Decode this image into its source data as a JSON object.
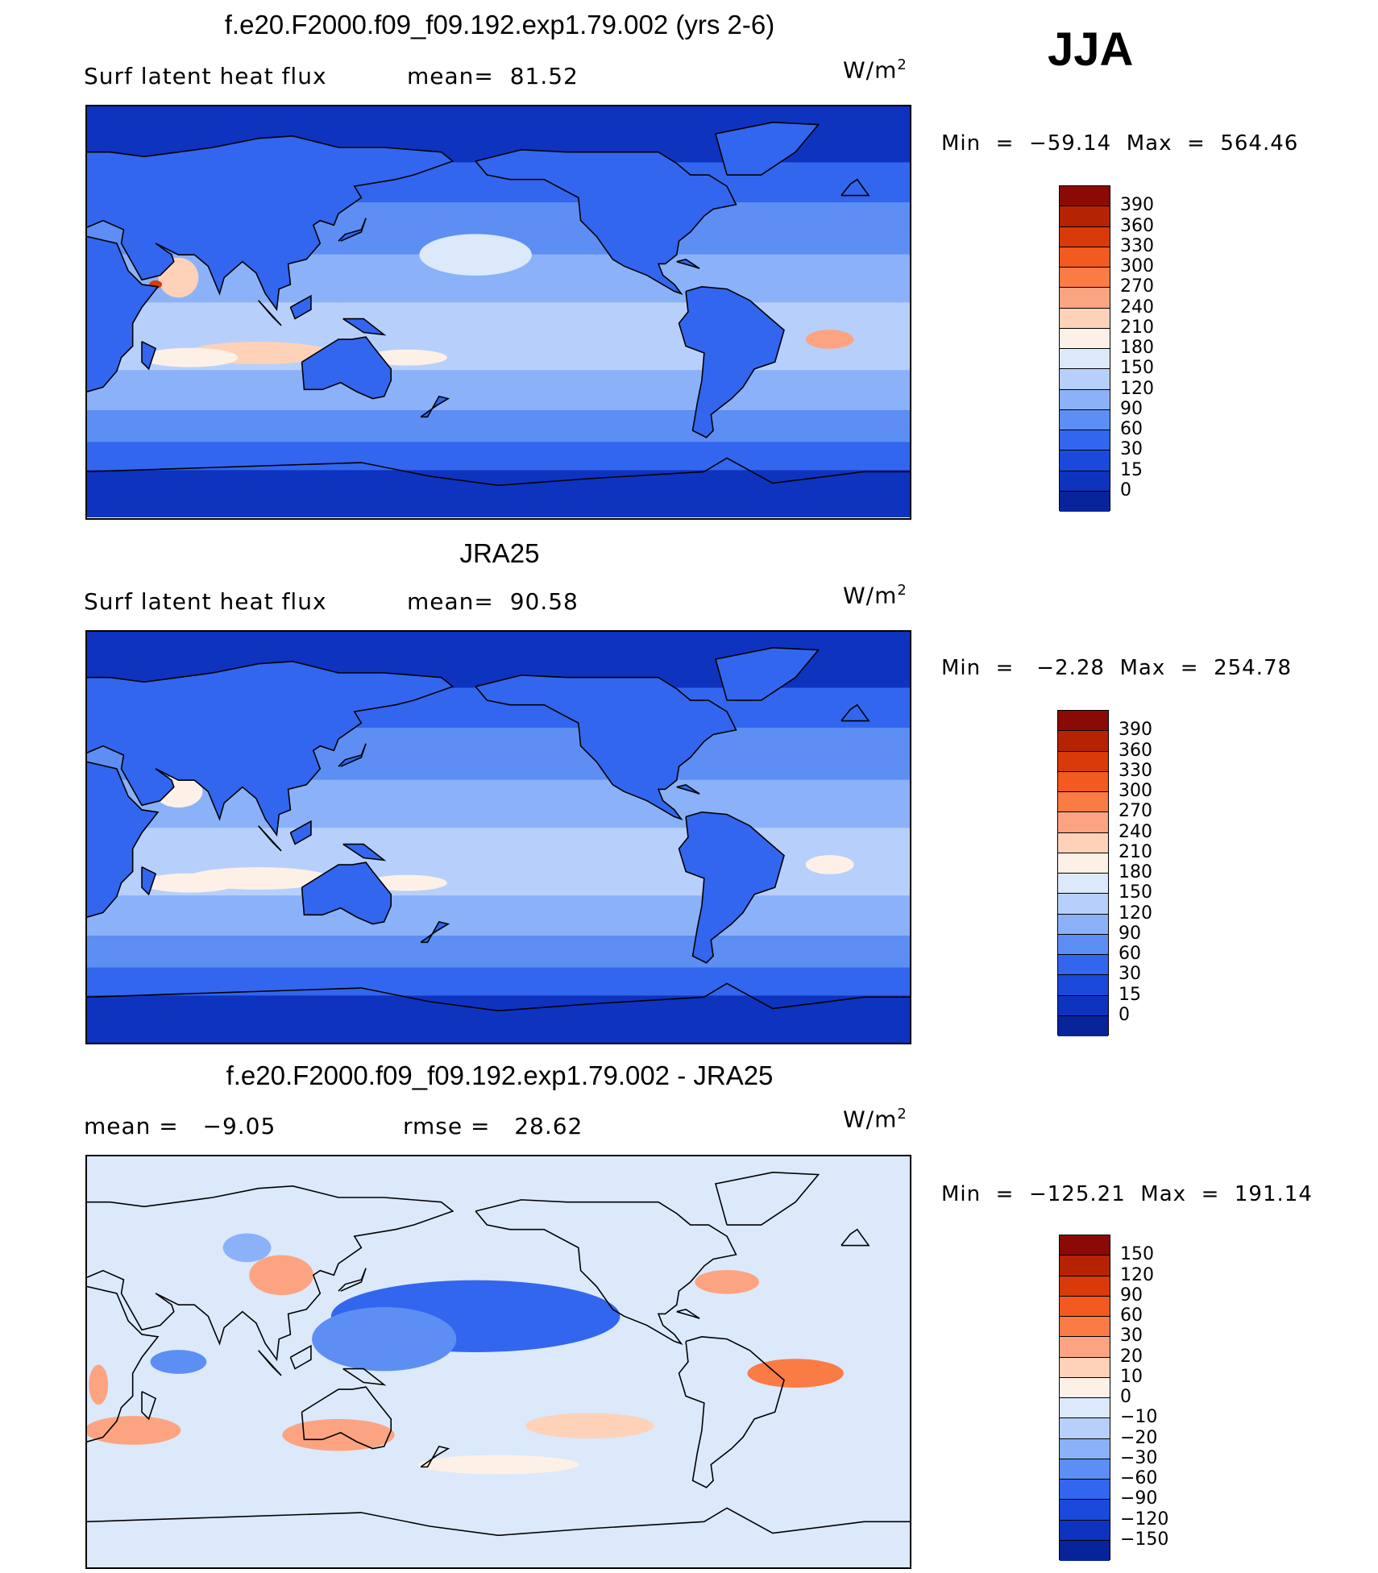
{
  "season": "JJA",
  "panels": [
    {
      "title": "f.e20.F2000.f09_f09.192.exp1.79.002 (yrs 2-6)",
      "left_label": "Surf latent heat flux",
      "stat_label": "mean=",
      "stat_value": "81.52",
      "units_main": "W/m",
      "units_sup": "2",
      "min_label": "Min",
      "min_value": "−59.14",
      "max_label": "Max",
      "max_value": "564.46",
      "colorbar": {
        "levels": [
          "390",
          "360",
          "330",
          "300",
          "270",
          "240",
          "210",
          "180",
          "150",
          "120",
          "90",
          "60",
          "30",
          "15",
          "0"
        ],
        "colors": [
          "#8b0a05",
          "#b52303",
          "#d83a0a",
          "#f25a20",
          "#fb7b45",
          "#fca481",
          "#fdd2b8",
          "#fdf0e6",
          "#dbe9fb",
          "#b7d0fb",
          "#8bb2f8",
          "#5d8ef3",
          "#3366ee",
          "#1a49dc",
          "#0d33bf",
          "#08249a"
        ]
      },
      "chart_data": {
        "type": "heatmap",
        "title": "f.e20.F2000.f09_f09.192.exp1.79.002 (yrs 2-6)",
        "field": "Surf latent heat flux",
        "units": "W/m2",
        "mean": 81.52,
        "min": -59.14,
        "max": 564.46,
        "contour_levels": [
          0,
          15,
          30,
          60,
          90,
          120,
          150,
          180,
          210,
          240,
          270,
          300,
          330,
          360,
          390
        ]
      }
    },
    {
      "title": "JRA25",
      "left_label": "Surf latent heat flux",
      "stat_label": "mean=",
      "stat_value": "90.58",
      "units_main": "W/m",
      "units_sup": "2",
      "min_label": "Min",
      "min_value": "−2.28",
      "max_label": "Max",
      "max_value": "254.78",
      "colorbar": {
        "levels": [
          "390",
          "360",
          "330",
          "300",
          "270",
          "240",
          "210",
          "180",
          "150",
          "120",
          "90",
          "60",
          "30",
          "15",
          "0"
        ],
        "colors": [
          "#8b0a05",
          "#b52303",
          "#d83a0a",
          "#f25a20",
          "#fb7b45",
          "#fca481",
          "#fdd2b8",
          "#fdf0e6",
          "#dbe9fb",
          "#b7d0fb",
          "#8bb2f8",
          "#5d8ef3",
          "#3366ee",
          "#1a49dc",
          "#0d33bf",
          "#08249a"
        ]
      },
      "chart_data": {
        "type": "heatmap",
        "title": "JRA25",
        "field": "Surf latent heat flux",
        "units": "W/m2",
        "mean": 90.58,
        "min": -2.28,
        "max": 254.78,
        "contour_levels": [
          0,
          15,
          30,
          60,
          90,
          120,
          150,
          180,
          210,
          240,
          270,
          300,
          330,
          360,
          390
        ]
      }
    },
    {
      "title": "f.e20.F2000.f09_f09.192.exp1.79.002 - JRA25",
      "left_label": "mean =",
      "left_value": "−9.05",
      "stat_label": "rmse =",
      "stat_value": "28.62",
      "units_main": "W/m",
      "units_sup": "2",
      "min_label": "Min",
      "min_value": "−125.21",
      "max_label": "Max",
      "max_value": "191.14",
      "colorbar": {
        "levels": [
          "150",
          "120",
          "90",
          "60",
          "30",
          "20",
          "10",
          "0",
          "−10",
          "−20",
          "−30",
          "−60",
          "−90",
          "−120",
          "−150"
        ],
        "colors": [
          "#8b0a05",
          "#b52303",
          "#d83a0a",
          "#f25a20",
          "#fb7b45",
          "#fca481",
          "#fdd2b8",
          "#fdf0e6",
          "#dbe9fb",
          "#b7d0fb",
          "#8bb2f8",
          "#5d8ef3",
          "#3366ee",
          "#1a49dc",
          "#0d33bf",
          "#08249a"
        ]
      },
      "chart_data": {
        "type": "heatmap",
        "title": "f.e20.F2000.f09_f09.192.exp1.79.002 - JRA25",
        "units": "W/m2",
        "mean": -9.05,
        "rmse": 28.62,
        "min": -125.21,
        "max": 191.14,
        "contour_levels": [
          -150,
          -120,
          -90,
          -60,
          -30,
          -20,
          -10,
          0,
          10,
          20,
          30,
          60,
          90,
          120,
          150
        ]
      }
    }
  ]
}
